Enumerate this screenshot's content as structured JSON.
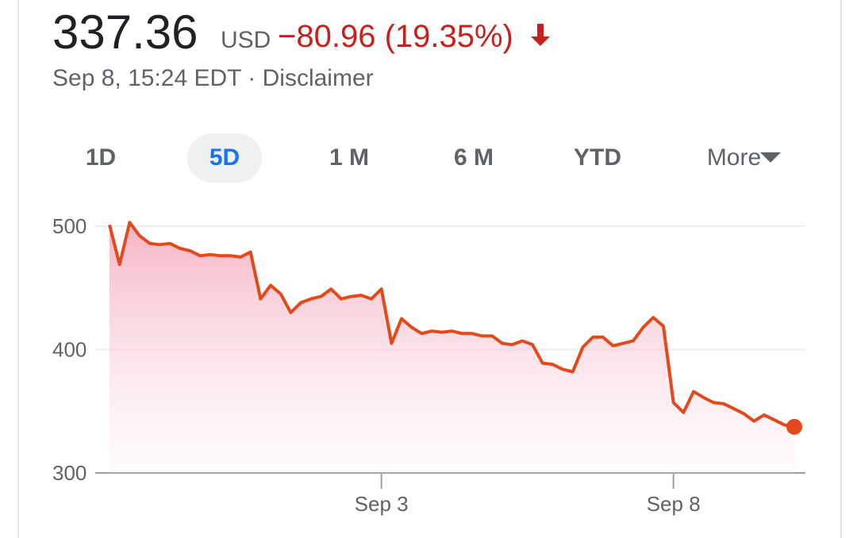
{
  "header": {
    "price": "337.36",
    "currency": "USD",
    "change": "−80.96 (19.35%)",
    "timestamp": "Sep 8, 15:24 EDT",
    "separator": "·",
    "disclaimer": "Disclaimer"
  },
  "tabs": [
    "1D",
    "5D",
    "1 M",
    "6 M",
    "YTD",
    "More"
  ],
  "selected_tab": 1,
  "chart_data": {
    "type": "line",
    "color": "#e4491c",
    "categories": [
      null,
      null,
      null,
      null,
      null,
      null,
      null,
      null,
      null,
      null,
      null,
      null,
      null,
      null,
      null,
      null,
      null,
      null,
      null,
      null,
      null,
      null,
      null,
      null,
      null,
      null,
      null,
      "Sep 3",
      null,
      null,
      null,
      null,
      null,
      null,
      null,
      null,
      null,
      null,
      null,
      null,
      null,
      null,
      null,
      null,
      null,
      null,
      null,
      null,
      null,
      null,
      null,
      null,
      null,
      null,
      null,
      null,
      "Sep 8",
      null,
      null,
      null,
      null,
      null,
      null,
      null,
      null,
      null,
      null,
      null,
      null
    ],
    "series": [
      {
        "values": [
          501,
          469,
          503,
          492,
          486,
          485,
          486,
          482,
          480,
          476,
          477,
          476,
          476,
          475,
          479,
          441,
          452,
          445,
          430,
          438,
          441,
          443,
          449,
          441,
          443,
          444,
          441,
          449,
          405,
          425,
          418,
          413,
          415,
          414,
          415,
          413,
          413,
          411,
          411,
          405,
          404,
          407,
          404,
          389,
          388,
          384,
          382,
          402,
          410,
          410,
          403,
          405,
          407,
          418,
          426,
          419,
          357,
          349,
          366,
          361,
          357,
          356,
          352,
          348,
          342,
          347,
          343,
          339,
          337.36
        ]
      }
    ],
    "ylim": [
      300,
      500
    ],
    "yticks": [
      300,
      400,
      500
    ],
    "grid": true
  }
}
